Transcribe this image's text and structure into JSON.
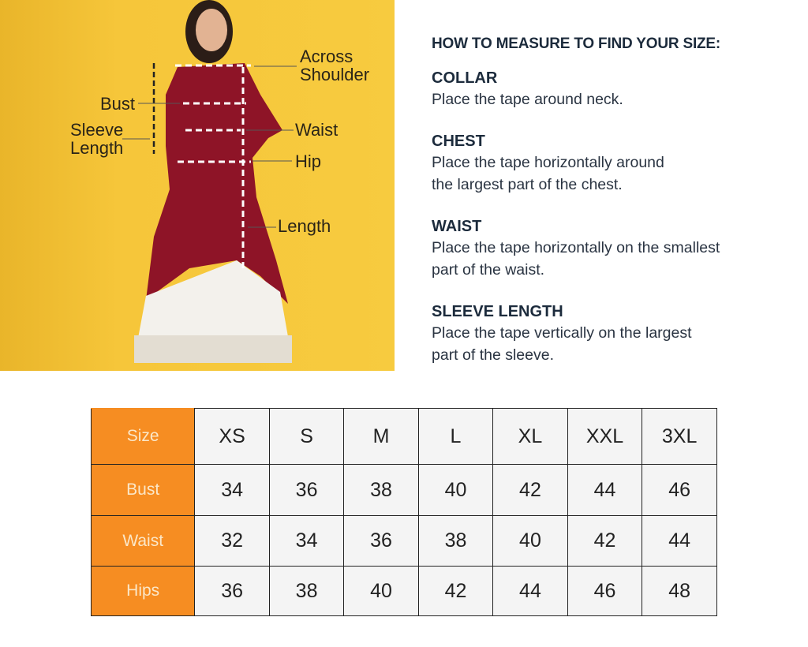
{
  "figure": {
    "labels": {
      "across_shoulder": [
        "Across",
        "Shoulder"
      ],
      "bust": "Bust",
      "sleeve_length": [
        "Sleeve",
        "Length"
      ],
      "waist": "Waist",
      "hip": "Hip",
      "length": "Length"
    },
    "colors": {
      "background": "#f7c93a",
      "kurta": "#8e1427",
      "palazzo": "#f3f1ec"
    }
  },
  "guide": {
    "title": "HOW TO MEASURE TO FIND YOUR SIZE:",
    "sections": [
      {
        "heading": "COLLAR",
        "lines": [
          "Place the tape around neck."
        ]
      },
      {
        "heading": "CHEST",
        "lines": [
          "Place the tape horizontally around",
          "the largest part of the chest."
        ]
      },
      {
        "heading": "WAIST",
        "lines": [
          "Place the tape horizontally on the smallest",
          "part of the waist."
        ]
      },
      {
        "heading": "SLEEVE LENGTH",
        "lines": [
          "Place the tape vertically on the largest",
          "part of the sleeve."
        ]
      }
    ]
  },
  "size_table": {
    "header_color": "#f68d22",
    "rows": [
      {
        "label": "Size",
        "values": [
          "XS",
          "S",
          "M",
          "L",
          "XL",
          "XXL",
          "3XL"
        ]
      },
      {
        "label": "Bust",
        "values": [
          "34",
          "36",
          "38",
          "40",
          "42",
          "44",
          "46"
        ]
      },
      {
        "label": "Waist",
        "values": [
          "32",
          "34",
          "36",
          "38",
          "40",
          "42",
          "44"
        ]
      },
      {
        "label": "Hips",
        "values": [
          "36",
          "38",
          "40",
          "42",
          "44",
          "46",
          "48"
        ]
      }
    ]
  }
}
